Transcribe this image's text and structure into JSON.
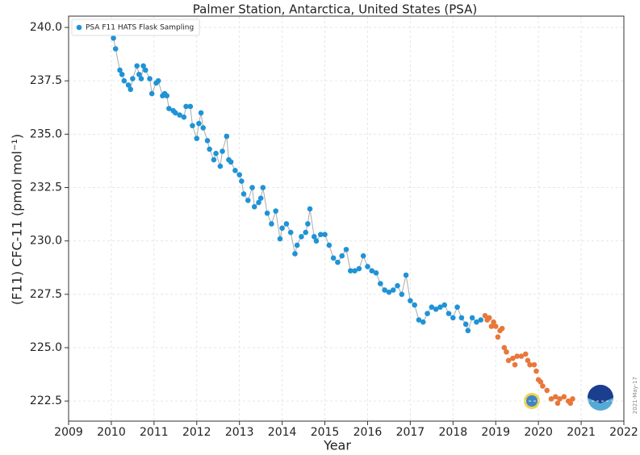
{
  "chart_data": {
    "type": "scatter",
    "title": "Palmer Station, Antarctica, United States (PSA)",
    "x_label": "Year",
    "y_label": "(F11) CFC-11 (pmol mol⁻¹)",
    "stamp": "2021-May-17",
    "xlim": [
      2009,
      2022
    ],
    "ylim": [
      221.56,
      240.53
    ],
    "xticks": [
      2009,
      2010,
      2011,
      2012,
      2013,
      2014,
      2015,
      2016,
      2017,
      2018,
      2019,
      2020,
      2021,
      2022
    ],
    "yticks": [
      {
        "value": 222.5,
        "label": "222.5"
      },
      {
        "value": 225,
        "label": "225.0"
      },
      {
        "value": 227.5,
        "label": "227.5"
      },
      {
        "value": 230,
        "label": "230.0"
      },
      {
        "value": 232.5,
        "label": "232.5"
      },
      {
        "value": 235,
        "label": "235.0"
      },
      {
        "value": 237.5,
        "label": "237.5"
      },
      {
        "value": 240,
        "label": "240.0"
      }
    ],
    "grid": true,
    "legend_position": "upper-left",
    "series": [
      {
        "name": "PSA F11 HATS Flask Sampling",
        "color": "#1f93d6",
        "line": true,
        "line_color": "#aaaaaa",
        "x": [
          2010.05,
          2010.1,
          2010.2,
          2010.25,
          2010.3,
          2010.4,
          2010.45,
          2010.5,
          2010.6,
          2010.65,
          2010.7,
          2010.75,
          2010.8,
          2010.9,
          2010.95,
          2011.05,
          2011.1,
          2011.2,
          2011.25,
          2011.3,
          2011.35,
          2011.45,
          2011.5,
          2011.6,
          2011.7,
          2011.75,
          2011.85,
          2011.9,
          2012.0,
          2012.05,
          2012.1,
          2012.15,
          2012.25,
          2012.3,
          2012.4,
          2012.45,
          2012.55,
          2012.6,
          2012.7,
          2012.75,
          2012.8,
          2012.9,
          2013.0,
          2013.05,
          2013.1,
          2013.2,
          2013.3,
          2013.35,
          2013.45,
          2013.5,
          2013.55,
          2013.65,
          2013.75,
          2013.85,
          2013.95,
          2014.0,
          2014.1,
          2014.2,
          2014.3,
          2014.35,
          2014.45,
          2014.55,
          2014.6,
          2014.65,
          2014.75,
          2014.8,
          2014.9,
          2015.0,
          2015.1,
          2015.2,
          2015.3,
          2015.4,
          2015.5,
          2015.6,
          2015.7,
          2015.8,
          2015.9,
          2016.0,
          2016.1,
          2016.2,
          2016.3,
          2016.4,
          2016.5,
          2016.6,
          2016.7,
          2016.8,
          2016.9,
          2017.0,
          2017.1,
          2017.2,
          2017.3,
          2017.4,
          2017.5,
          2017.6,
          2017.7,
          2017.8,
          2017.9,
          2018.0,
          2018.1,
          2018.2,
          2018.3,
          2018.35,
          2018.45,
          2018.55,
          2018.65
        ],
        "y": [
          239.5,
          239.0,
          238.0,
          237.8,
          237.5,
          237.3,
          237.1,
          237.6,
          238.2,
          237.8,
          237.6,
          238.2,
          238.0,
          237.6,
          236.9,
          237.4,
          237.5,
          236.8,
          236.9,
          236.8,
          236.2,
          236.1,
          236.0,
          235.9,
          235.8,
          236.3,
          236.3,
          235.4,
          234.8,
          235.5,
          236.0,
          235.3,
          234.7,
          234.3,
          233.8,
          234.1,
          233.5,
          234.2,
          234.9,
          233.8,
          233.7,
          233.3,
          233.1,
          232.8,
          232.2,
          231.9,
          232.5,
          231.6,
          231.8,
          232.0,
          232.5,
          231.3,
          230.8,
          231.4,
          230.1,
          230.6,
          230.8,
          230.4,
          229.4,
          229.8,
          230.2,
          230.4,
          230.8,
          231.5,
          230.2,
          230.0,
          230.3,
          230.3,
          229.8,
          229.2,
          229.0,
          229.3,
          229.6,
          228.6,
          228.6,
          228.7,
          229.3,
          228.8,
          228.6,
          228.5,
          228.0,
          227.7,
          227.6,
          227.7,
          227.9,
          227.5,
          228.4,
          227.2,
          227.0,
          226.3,
          226.2,
          226.6,
          226.9,
          226.8,
          226.9,
          227.0,
          226.6,
          226.4,
          226.9,
          226.4,
          226.1,
          225.8,
          226.4,
          226.2,
          226.3
        ]
      },
      {
        "color": "#e8773a",
        "x": [
          2018.75,
          2018.8,
          2018.85,
          2018.9,
          2018.95,
          2019.0,
          2019.05,
          2019.1,
          2019.15,
          2019.2,
          2019.25,
          2019.3,
          2019.4,
          2019.45,
          2019.5,
          2019.6,
          2019.7,
          2019.75,
          2019.8,
          2019.9,
          2019.95,
          2020.0,
          2020.05,
          2020.1,
          2020.2,
          2020.3,
          2020.4,
          2020.45,
          2020.5,
          2020.6,
          2020.7,
          2020.75,
          2020.8
        ],
        "y": [
          226.5,
          226.3,
          226.4,
          226.0,
          226.2,
          226.0,
          225.5,
          225.8,
          225.9,
          225.0,
          224.8,
          224.4,
          224.5,
          224.2,
          224.6,
          224.6,
          224.7,
          224.4,
          224.2,
          224.2,
          223.9,
          223.5,
          223.4,
          223.2,
          223.0,
          222.6,
          222.7,
          222.4,
          222.6,
          222.7,
          222.5,
          222.4,
          222.6
        ]
      }
    ]
  }
}
